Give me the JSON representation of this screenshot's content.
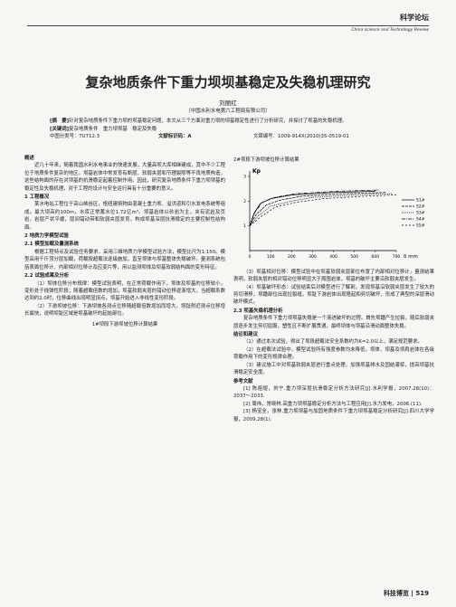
{
  "header": {
    "section": "科学论坛",
    "journal": "China science and Technology Review"
  },
  "title": "复杂地质条件下重力坝坝基稳定及失稳机理研究",
  "author": "刘丽红",
  "affiliation": "（中国水利水电第六工程局有限公司）",
  "abstract": {
    "label": "[摘　要]",
    "text": "针对复杂地质条件下重力坝的坝基稳定问题，本文从三个方面对重力坝的坝基稳定性进行了分析研究，并探讨了坝基的失稳机理。"
  },
  "keywords": {
    "label": "[关键词]",
    "text": "复杂地质条件　重力坝坝基　稳定及失稳"
  },
  "meta": {
    "clc": "中图分类号：TU712.3",
    "code": "文献标识码：A",
    "article": "文章编号：1009-914X(2010)35-0519-01"
  },
  "left": [
    {
      "h": "概述"
    },
    {
      "p": "近几十年来，随着我国水利水电事业的快速发展，大量高坝大库相继建成，其中不少工程位于地质条件复杂的地区。坝基岩体中常发育有断层、软弱夹层和节理裂隙等不良地质构造，这些结构面的存在对坝基的抗滑稳定起着控制作用。因此，研究复杂地质条件下重力坝坝基的稳定性及失稳机理，对于工程的设计与安全运行具有十分重要的意义。"
    },
    {
      "h": "1 工程概况"
    },
    {
      "p": "某水电站工程位于高山峡谷区，枢纽建筑物由混凝土重力坝、溢洪道和引水发电系统等组成。最大坝高约100m，水库正常蓄水位1.72亿m³。坝基岩体以砂岩为主，夹有泥岩及页岩，岩层产状平缓，层间错动带和软弱夹层发育，构成坝基深层抗滑稳定的主要控制性结构面。"
    },
    {
      "h": "2 地质力学模型试验"
    },
    {
      "h": "2.1 模型加载及量测系统"
    },
    {
      "p": "根据工程特点及试验任务要求，采用三维地质力学模型试验方法，模型比尺为1:150。模型采用千斤顶分层加载，荷载按超载法逐级施加，直至坝体与坝基整体失稳破坏。量测系统包括表面位移计、内部相对位移计及应变片等，用以监测坝体及坝基软弱结构面的变形特征。"
    },
    {
      "h": "2.2 试验成果及分析"
    },
    {
      "p": "（1）坝体位移分布规律：模型试验表明，在正常荷载作用下，坝体及坝基的位移较小，变形处于线弹性阶段；随着超载倍数的增加，坝基软弱夹层的错动位移逐渐增大，当超载系数达到约2.0时，位移曲线出现明显拐点，坝基开始进入非线性变形阶段。"
    },
    {
      "p": "（2）下游坝坡位移：下游坝坡各测点位移随超载倍数增加而增大，坝趾附近测点位移增长最快，说明坝趾区域是坝基破坏的起始部位。"
    },
    {
      "cap": "1#坝段下游坝坡位移计算结果"
    }
  ],
  "figure": {
    "type": "line",
    "caption": "2#坝段下游坝坡位移计算结果",
    "y_label": "Kp",
    "x_label": "δ mm",
    "xlim": [
      0,
      700
    ],
    "ylim": [
      0,
      3
    ],
    "xticks": [
      0,
      100,
      200,
      300,
      400,
      500,
      600,
      700
    ],
    "yticks": [
      1,
      2,
      3
    ],
    "series": [
      {
        "name": "S1#",
        "color": "#000000",
        "x": [
          0,
          20,
          50,
          100,
          200,
          400,
          600
        ],
        "values": [
          1,
          1.5,
          1.9,
          2.1,
          2.25,
          2.35,
          2.4
        ]
      },
      {
        "name": "S2#",
        "color": "#000000",
        "x": [
          0,
          30,
          80,
          150,
          250,
          450,
          650
        ],
        "values": [
          1,
          1.45,
          1.85,
          2.05,
          2.2,
          2.3,
          2.35
        ]
      },
      {
        "name": "S3#",
        "color": "#000000",
        "x": [
          0,
          40,
          100,
          200,
          300,
          500,
          680
        ],
        "values": [
          1,
          1.4,
          1.8,
          2,
          2.15,
          2.25,
          2.3
        ]
      },
      {
        "name": "S4#",
        "color": "#000000",
        "x": [
          0,
          25,
          60,
          120,
          220,
          420,
          620
        ],
        "values": [
          1,
          1.55,
          1.95,
          2.15,
          2.3,
          2.4,
          2.45
        ]
      },
      {
        "name": "S5#",
        "color": "#000000",
        "x": [
          0,
          50,
          120,
          220,
          350,
          550,
          700
        ],
        "values": [
          1,
          1.35,
          1.75,
          1.95,
          2.1,
          2.2,
          2.25
        ]
      }
    ]
  },
  "right": [
    {
      "p": "（3）坝基相对位移：模型试验中在坝基软弱夹层部位布置了内部相对位移计，量测结果表明，软弱夹层的相对错动位移明显大于周围岩体，坝基的破坏主要沿软弱夹层发生。"
    },
    {
      "p": "（4）坝基破坏形态：试验结束后对模型进行了解剖，发现坝基沿软弱夹层发生了较大的剪切滑移，坝踵部位出现拉裂缝，坝趾下游岩体出现隆起和剪切破坏，形成了典型的深层滑动破坏模式。"
    },
    {
      "h": "2.3 坝基失稳机理分析"
    },
    {
      "p": "复杂地质条件下重力坝坝基失稳是一个渐进破坏的过程。首先坝踵产生拉裂，随后软弱夹层逐步发生剪切屈服，塑性区不断扩展贯通，最终坝体与坝基沿滑动面整体失稳。"
    },
    {
      "h": "结论和建议"
    },
    {
      "p": "（1）通过本次试验，得出了坝段超载法安全系数约为K=2.0以上，满足规范要求。"
    },
    {
      "p": "（2）在超载法试验中，模型试验所有强度参数均未降低，坝体、坝基及坝肩岩体在各级荷载作用下的变形规律合理。"
    },
    {
      "p": "（3）建议施工中对坝基软弱夹层进行重点处理，加强坝基排水及固结灌浆，提高坝基抗滑稳定安全度。"
    },
    {
      "h": "参考文献"
    },
    {
      "p": "[1] 陈祖煜，刘宁.重力坝深层抗滑稳定分析方法研究[J].水利学报，2007.28(10)：2037～2033."
    },
    {
      "p": "[2] 周伟，常晓林.高重力坝坝基稳定分析方法与工程应用[J].水力发电，2006.(11)."
    },
    {
      "p": "[3] 杨宝全，张林.重力坝坝基与加固地质条件下重力坝坝基稳定分析研究[J].四川大学学报，2009,28(1)."
    }
  ],
  "footer": {
    "journal": "科技博览",
    "page": "519"
  }
}
